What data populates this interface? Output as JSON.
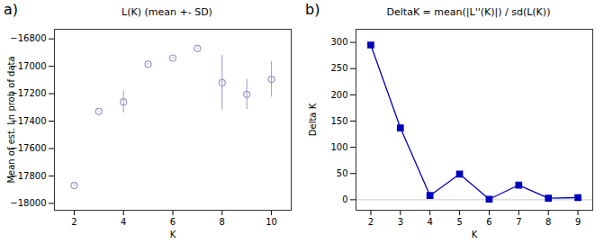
{
  "chart_data": [
    {
      "type": "scatter",
      "panel_label": "a)",
      "title": "L(K) (mean +- SD)",
      "xlabel": "K",
      "ylabel": "Mean of est. Ln prob of data",
      "x": [
        2,
        3,
        4,
        5,
        6,
        7,
        8,
        9,
        10
      ],
      "values": [
        -17870,
        -17330,
        -17260,
        -16985,
        -16940,
        -16870,
        -17120,
        -17205,
        -17095
      ],
      "errors": [
        5,
        5,
        80,
        5,
        5,
        5,
        200,
        110,
        130
      ],
      "color": "#9999cc",
      "marker": "circle",
      "xlim": [
        1.2,
        10.8
      ],
      "xticks": [
        2,
        4,
        6,
        8,
        10
      ],
      "ylim": [
        -18050,
        -16730
      ],
      "yticks": [
        -18000,
        -17800,
        -17600,
        -17400,
        -17200,
        -17000,
        -16800
      ]
    },
    {
      "type": "line",
      "panel_label": "b)",
      "title": "DeltaK = mean(|L''(K)|) / sd(L(K))",
      "xlabel": "K",
      "ylabel": "Delta K",
      "x": [
        2,
        3,
        4,
        5,
        6,
        7,
        8,
        9
      ],
      "values": [
        295,
        137,
        8,
        49,
        1,
        28,
        3,
        4
      ],
      "color": "#0000bb",
      "marker": "square",
      "xlim": [
        1.5,
        9.5
      ],
      "xticks": [
        2,
        3,
        4,
        5,
        6,
        7,
        8,
        9
      ],
      "ylim": [
        -20,
        325
      ],
      "yticks": [
        0,
        50,
        100,
        150,
        200,
        250,
        300
      ],
      "hline": {
        "value": 0,
        "color": "#cccccc"
      }
    }
  ]
}
